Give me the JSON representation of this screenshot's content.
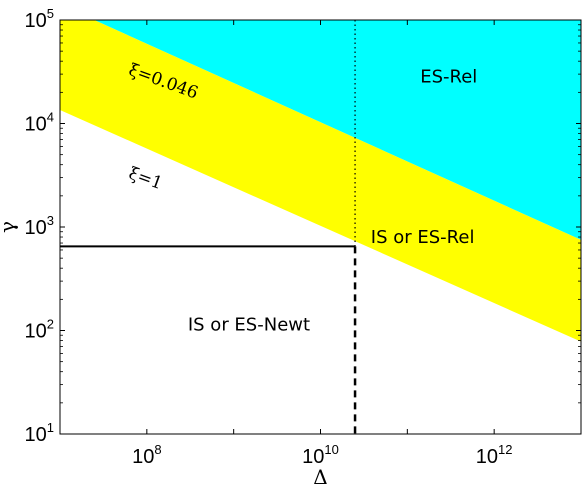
{
  "chart_data": {
    "type": "area",
    "title": "",
    "xlabel": "Δ",
    "ylabel": "γ",
    "xscale": "log",
    "yscale": "log",
    "xlim": [
      10000000.0,
      10000000000000.0
    ],
    "ylim": [
      10,
      100000
    ],
    "grid": false,
    "x_ticks": [
      {
        "base": "10",
        "exp": "8",
        "value": 100000000.0
      },
      {
        "base": "10",
        "exp": "10",
        "value": 10000000000.0
      },
      {
        "base": "10",
        "exp": "12",
        "value": 1000000000000.0
      }
    ],
    "y_ticks": [
      {
        "base": "10",
        "exp": "1",
        "value": 10
      },
      {
        "base": "10",
        "exp": "2",
        "value": 100
      },
      {
        "base": "10",
        "exp": "3",
        "value": 1000
      },
      {
        "base": "10",
        "exp": "4",
        "value": 10000
      },
      {
        "base": "10",
        "exp": "5",
        "value": 100000
      }
    ],
    "bands": [
      {
        "name": "ES-Rel",
        "color": "#00ffff",
        "lower_line": {
          "label": "ξ=0.046",
          "x": [
            10000000.0,
            10000000000000.0
          ],
          "y": [
            141000,
            750
          ]
        }
      },
      {
        "name": "IS or ES-Rel",
        "color": "#ffff00",
        "lower_line": {
          "label": "ξ=1",
          "x": [
            10000000.0,
            10000000000000.0
          ],
          "y": [
            13500,
            78
          ]
        }
      }
    ],
    "regions": [
      {
        "label": "ES-Rel",
        "x": 300000000000.0,
        "y": 25000
      },
      {
        "label": "IS or ES-Rel",
        "x": 150000000000.0,
        "y": 700
      },
      {
        "label": "IS or ES-Newt",
        "x": 1500000000.0,
        "y": 100
      }
    ],
    "line_labels": [
      {
        "label": "ξ=0.046",
        "x": 60000000.0,
        "y": 30000,
        "rotate": 20
      },
      {
        "label": "ξ=1",
        "x": 60000000.0,
        "y": 3000,
        "rotate": 20
      }
    ],
    "boundaries": {
      "gamma_limit": 650,
      "delta_limit": 25000000000.0,
      "dotted_vertical_x": 25000000000.0
    }
  }
}
